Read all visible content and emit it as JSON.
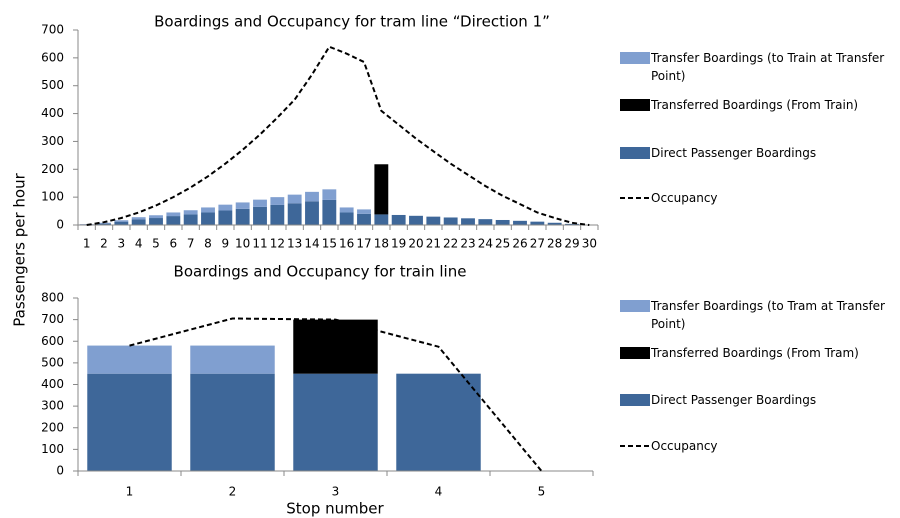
{
  "chart_data": [
    {
      "type": "bar",
      "stacked": true,
      "title": "Boardings and Occupancy for tram line “Direction 1”",
      "ylabel": "Passengers per hour",
      "categories": [
        "1",
        "2",
        "3",
        "4",
        "5",
        "6",
        "7",
        "8",
        "9",
        "10",
        "11",
        "12",
        "13",
        "14",
        "15",
        "16",
        "17",
        "18",
        "19",
        "20",
        "21",
        "22",
        "23",
        "24",
        "25",
        "26",
        "27",
        "28",
        "29",
        "30"
      ],
      "series": [
        {
          "name": "Transfer Boardings (to Train at Transfer Point)",
          "type": "bar",
          "color": "#809fd0",
          "values": [
            1,
            3,
            5,
            8,
            10,
            13,
            15,
            18,
            21,
            23,
            26,
            28,
            31,
            34,
            38,
            18,
            16,
            0,
            0,
            0,
            0,
            0,
            0,
            0,
            0,
            0,
            0,
            0,
            0,
            0
          ]
        },
        {
          "name": "Transferred Boardings (From Train)",
          "type": "bar",
          "color": "#000000",
          "values": [
            0,
            0,
            0,
            0,
            0,
            0,
            0,
            0,
            0,
            0,
            0,
            0,
            0,
            0,
            0,
            0,
            0,
            180,
            0,
            0,
            0,
            0,
            0,
            0,
            0,
            0,
            0,
            0,
            0,
            0
          ]
        },
        {
          "name": "Direct Passenger Boardings",
          "type": "bar",
          "color": "#3e6799",
          "values": [
            2,
            5,
            12,
            20,
            25,
            32,
            38,
            45,
            52,
            58,
            65,
            72,
            78,
            85,
            90,
            45,
            40,
            38,
            36,
            33,
            30,
            27,
            24,
            21,
            18,
            15,
            12,
            8,
            4,
            1
          ]
        },
        {
          "name": "Occupancy",
          "type": "line",
          "color": "#000000",
          "dashed": true,
          "values": [
            0,
            10,
            25,
            45,
            70,
            100,
            135,
            175,
            220,
            270,
            325,
            385,
            450,
            540,
            640,
            615,
            585,
            410,
            360,
            310,
            265,
            220,
            180,
            140,
            105,
            75,
            45,
            25,
            8,
            0
          ]
        }
      ],
      "ylim": [
        0,
        700
      ],
      "yticks": [
        0,
        100,
        200,
        300,
        400,
        500,
        600,
        700
      ]
    },
    {
      "type": "bar",
      "stacked": true,
      "title": "Boardings and Occupancy for train line",
      "xlabel": "Stop number",
      "categories": [
        "1",
        "2",
        "3",
        "4",
        "5"
      ],
      "series": [
        {
          "name": "Transfer Boardings (to Tram at Transfer Point)",
          "type": "bar",
          "color": "#809fd0",
          "values": [
            130,
            130,
            0,
            0,
            0
          ]
        },
        {
          "name": "Transferred Boardings (From Tram)",
          "type": "bar",
          "color": "#000000",
          "values": [
            0,
            0,
            250,
            0,
            0
          ]
        },
        {
          "name": "Direct Passenger Boardings",
          "type": "bar",
          "color": "#3e6799",
          "values": [
            450,
            450,
            450,
            450,
            0
          ]
        },
        {
          "name": "Occupancy",
          "type": "line",
          "color": "#000000",
          "dashed": true,
          "values": [
            580,
            705,
            700,
            575,
            0
          ]
        }
      ],
      "ylim": [
        0,
        800
      ],
      "yticks": [
        0,
        100,
        200,
        300,
        400,
        500,
        600,
        700,
        800
      ]
    }
  ]
}
